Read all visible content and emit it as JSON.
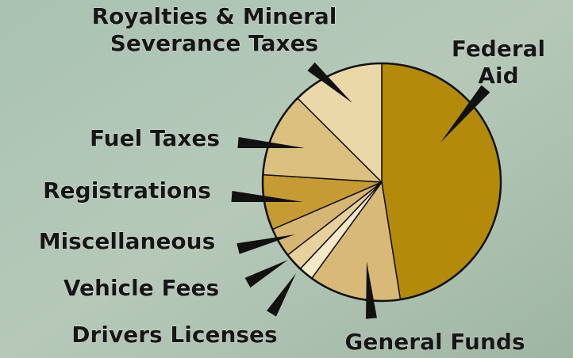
{
  "chart_data": {
    "type": "pie",
    "categories": [
      "Federal Aid",
      "General Funds",
      "Drivers Licenses",
      "Vehicle Fees",
      "Miscellaneous",
      "Registrations",
      "Fuel Taxes",
      "Royalties & Mineral Severance Taxes"
    ],
    "values": [
      47.5,
      12.5,
      2,
      2.5,
      4,
      7.5,
      11.5,
      12.5
    ],
    "colors": [
      "#b38a0a",
      "#d8b977",
      "#f3e8c8",
      "#e7d09c",
      "#d6b673",
      "#c69b33",
      "#dcc07f",
      "#ebd8a8"
    ]
  }
}
